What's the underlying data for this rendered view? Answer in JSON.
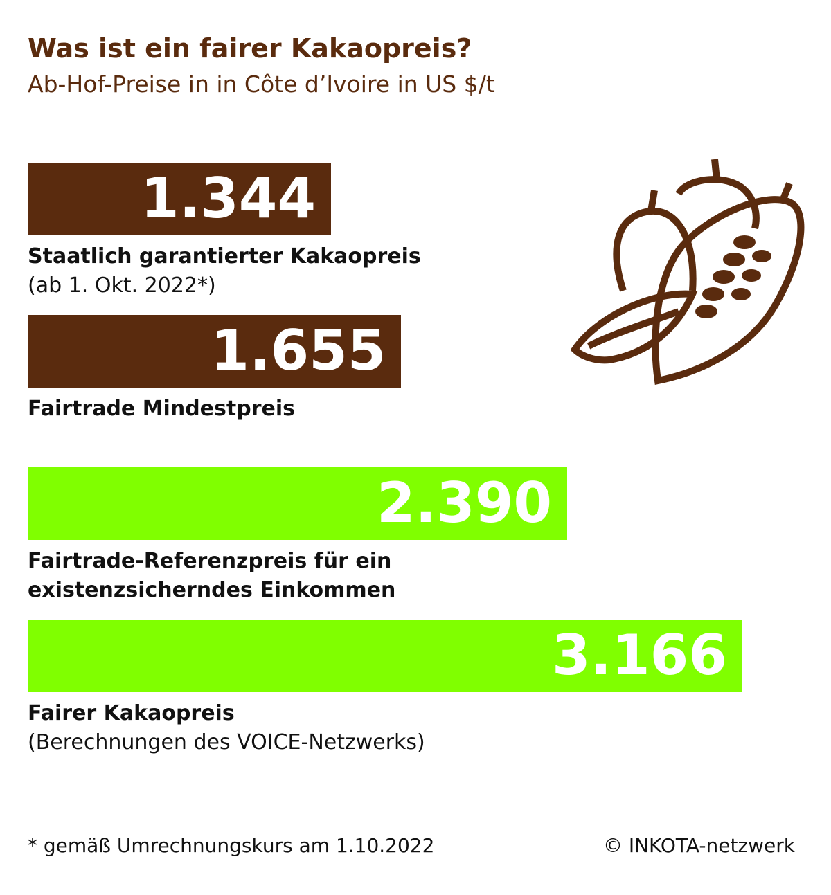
{
  "chart_data": {
    "type": "bar",
    "title": "Was ist ein fairer Kakaopreis?",
    "subtitle": "Ab-Hof-Preise in in Côte d’Ivoire in US $/t",
    "categories": [
      "Staatlich garantierter Kakaopreis",
      "Fairtrade Mindestpreis",
      "Fairtrade-Referenzpreis für ein existenzsicherndes Einkommen",
      "Fairer Kakaopreis"
    ],
    "category_notes": [
      "(ab 1. Okt. 2022*)",
      null,
      null,
      "(Berechnungen des VOICE-Netzwerks)"
    ],
    "values": [
      1344,
      1655,
      2390,
      3166
    ],
    "value_labels": [
      "1.344",
      "1.655",
      "2.390",
      "3.166"
    ],
    "colors": [
      "#5a2b0e",
      "#5a2b0e",
      "#80ff00",
      "#80ff00"
    ],
    "footnote": "* gemäß Umrechnungskurs am 1.10.2022",
    "source": "© INKOTA-netzwerk"
  }
}
